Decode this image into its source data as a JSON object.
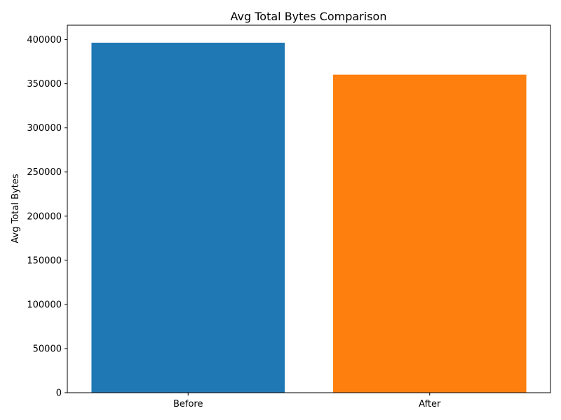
{
  "chart_data": {
    "type": "bar",
    "title": "Avg Total Bytes Comparison",
    "xlabel": "",
    "ylabel": "Avg Total Bytes",
    "categories": [
      "Before",
      "After"
    ],
    "values": [
      396500,
      360300
    ],
    "colors": [
      "#1f77b4",
      "#ff7f0e"
    ],
    "ylim": [
      0,
      416325
    ],
    "yticks": [
      0,
      50000,
      100000,
      150000,
      200000,
      250000,
      300000,
      350000,
      400000
    ],
    "ytick_labels": [
      "0",
      "50000",
      "100000",
      "150000",
      "200000",
      "250000",
      "300000",
      "350000",
      "400000"
    ],
    "grid": false,
    "legend": "none"
  }
}
